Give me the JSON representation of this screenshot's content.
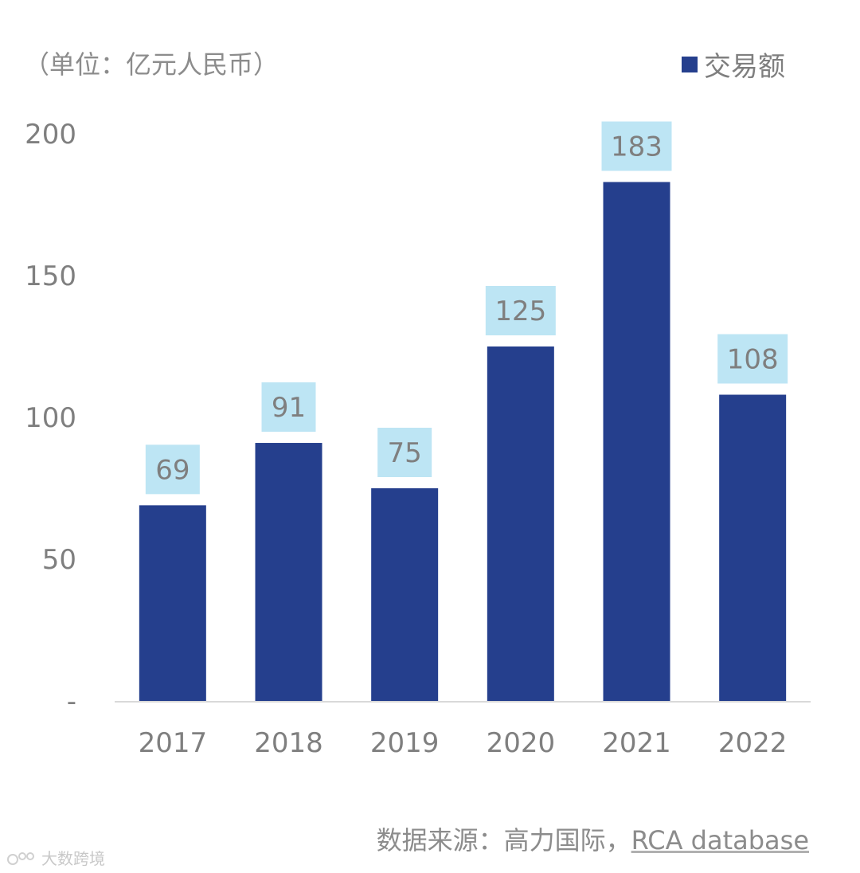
{
  "unit_label": "（单位：亿元人民币）",
  "source": {
    "prefix": "数据来源：高力国际，",
    "database": "RCA database"
  },
  "watermark": "大数跨境",
  "colors": {
    "bar": "#253f8d",
    "label_box": "#bde5f4",
    "text": "#7f7f7f",
    "axis": "#d9d9d9"
  },
  "chart_data": {
    "type": "bar",
    "categories": [
      "2017",
      "2018",
      "2019",
      "2020",
      "2021",
      "2022"
    ],
    "series": [
      {
        "name": "交易额",
        "values": [
          69,
          91,
          75,
          125,
          183,
          108
        ]
      }
    ],
    "data_labels": [
      "69",
      "91",
      "75",
      "125",
      "183",
      "108"
    ],
    "ylim": [
      0,
      200
    ],
    "yticks": [
      0,
      50,
      100,
      150,
      200
    ],
    "ytick_labels": [
      "-",
      "50",
      "100",
      "150",
      "200"
    ],
    "grid": false,
    "legend_position": "top-right"
  }
}
